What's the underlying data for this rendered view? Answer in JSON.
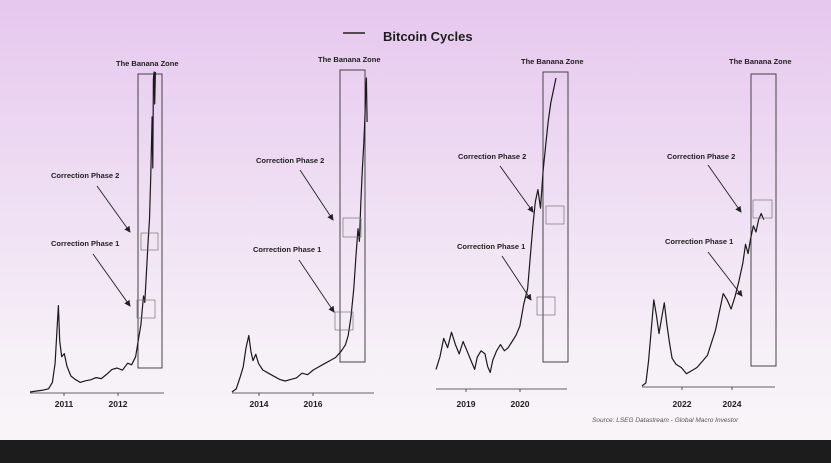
{
  "chart_data": {
    "type": "line",
    "title": "Bitcoin Cycles",
    "legend": "top-center",
    "source": "Source: LSEG Datastream - Global Macro Investor",
    "zone_label": "The Banana Zone",
    "annotation_labels": [
      "Correction Phase 2",
      "Correction Phase 1"
    ],
    "panels": [
      {
        "x_ticks": [
          "2011",
          "2012"
        ],
        "series": [
          {
            "x": 0.0,
            "y": 0.0
          },
          {
            "x": 0.05,
            "y": 0.003
          },
          {
            "x": 0.1,
            "y": 0.006
          },
          {
            "x": 0.14,
            "y": 0.01
          },
          {
            "x": 0.17,
            "y": 0.03
          },
          {
            "x": 0.19,
            "y": 0.09
          },
          {
            "x": 0.205,
            "y": 0.2
          },
          {
            "x": 0.215,
            "y": 0.27
          },
          {
            "x": 0.225,
            "y": 0.16
          },
          {
            "x": 0.24,
            "y": 0.11
          },
          {
            "x": 0.26,
            "y": 0.12
          },
          {
            "x": 0.28,
            "y": 0.08
          },
          {
            "x": 0.31,
            "y": 0.05
          },
          {
            "x": 0.34,
            "y": 0.04
          },
          {
            "x": 0.38,
            "y": 0.03
          },
          {
            "x": 0.42,
            "y": 0.035
          },
          {
            "x": 0.46,
            "y": 0.038
          },
          {
            "x": 0.5,
            "y": 0.045
          },
          {
            "x": 0.54,
            "y": 0.042
          },
          {
            "x": 0.58,
            "y": 0.055
          },
          {
            "x": 0.62,
            "y": 0.07
          },
          {
            "x": 0.66,
            "y": 0.075
          },
          {
            "x": 0.7,
            "y": 0.068
          },
          {
            "x": 0.74,
            "y": 0.09
          },
          {
            "x": 0.77,
            "y": 0.085
          },
          {
            "x": 0.8,
            "y": 0.11
          },
          {
            "x": 0.82,
            "y": 0.16
          },
          {
            "x": 0.84,
            "y": 0.21
          },
          {
            "x": 0.86,
            "y": 0.3
          },
          {
            "x": 0.87,
            "y": 0.28
          },
          {
            "x": 0.88,
            "y": 0.36
          },
          {
            "x": 0.895,
            "y": 0.47
          },
          {
            "x": 0.905,
            "y": 0.54
          },
          {
            "x": 0.915,
            "y": 0.68
          },
          {
            "x": 0.925,
            "y": 0.86
          },
          {
            "x": 0.93,
            "y": 0.7
          },
          {
            "x": 0.935,
            "y": 0.98
          },
          {
            "x": 0.94,
            "y": 1.0
          },
          {
            "x": 0.945,
            "y": 0.9
          },
          {
            "x": 0.95,
            "y": 1.0
          }
        ]
      },
      {
        "x_ticks": [
          "2014",
          "2016"
        ],
        "series": [
          {
            "x": 0.0,
            "y": 0.0
          },
          {
            "x": 0.03,
            "y": 0.01
          },
          {
            "x": 0.06,
            "y": 0.05
          },
          {
            "x": 0.08,
            "y": 0.08
          },
          {
            "x": 0.1,
            "y": 0.14
          },
          {
            "x": 0.12,
            "y": 0.18
          },
          {
            "x": 0.135,
            "y": 0.13
          },
          {
            "x": 0.15,
            "y": 0.1
          },
          {
            "x": 0.17,
            "y": 0.12
          },
          {
            "x": 0.19,
            "y": 0.09
          },
          {
            "x": 0.22,
            "y": 0.07
          },
          {
            "x": 0.26,
            "y": 0.06
          },
          {
            "x": 0.3,
            "y": 0.05
          },
          {
            "x": 0.34,
            "y": 0.04
          },
          {
            "x": 0.38,
            "y": 0.035
          },
          {
            "x": 0.42,
            "y": 0.04
          },
          {
            "x": 0.46,
            "y": 0.045
          },
          {
            "x": 0.5,
            "y": 0.06
          },
          {
            "x": 0.54,
            "y": 0.055
          },
          {
            "x": 0.58,
            "y": 0.07
          },
          {
            "x": 0.62,
            "y": 0.08
          },
          {
            "x": 0.66,
            "y": 0.09
          },
          {
            "x": 0.7,
            "y": 0.1
          },
          {
            "x": 0.74,
            "y": 0.11
          },
          {
            "x": 0.78,
            "y": 0.13
          },
          {
            "x": 0.81,
            "y": 0.15
          },
          {
            "x": 0.83,
            "y": 0.18
          },
          {
            "x": 0.85,
            "y": 0.24
          },
          {
            "x": 0.87,
            "y": 0.33
          },
          {
            "x": 0.885,
            "y": 0.43
          },
          {
            "x": 0.9,
            "y": 0.52
          },
          {
            "x": 0.91,
            "y": 0.48
          },
          {
            "x": 0.92,
            "y": 0.6
          },
          {
            "x": 0.93,
            "y": 0.7
          },
          {
            "x": 0.94,
            "y": 0.78
          },
          {
            "x": 0.95,
            "y": 0.88
          },
          {
            "x": 0.955,
            "y": 0.96
          },
          {
            "x": 0.96,
            "y": 1.0
          },
          {
            "x": 0.965,
            "y": 0.86
          }
        ]
      },
      {
        "x_ticks": [
          "2019",
          "2020"
        ],
        "series": [
          {
            "x": 0.0,
            "y": 0.06
          },
          {
            "x": 0.03,
            "y": 0.1
          },
          {
            "x": 0.06,
            "y": 0.16
          },
          {
            "x": 0.09,
            "y": 0.13
          },
          {
            "x": 0.12,
            "y": 0.18
          },
          {
            "x": 0.15,
            "y": 0.14
          },
          {
            "x": 0.18,
            "y": 0.11
          },
          {
            "x": 0.21,
            "y": 0.15
          },
          {
            "x": 0.24,
            "y": 0.12
          },
          {
            "x": 0.27,
            "y": 0.09
          },
          {
            "x": 0.3,
            "y": 0.06
          },
          {
            "x": 0.32,
            "y": 0.1
          },
          {
            "x": 0.35,
            "y": 0.12
          },
          {
            "x": 0.38,
            "y": 0.11
          },
          {
            "x": 0.4,
            "y": 0.07
          },
          {
            "x": 0.42,
            "y": 0.05
          },
          {
            "x": 0.44,
            "y": 0.09
          },
          {
            "x": 0.47,
            "y": 0.12
          },
          {
            "x": 0.5,
            "y": 0.14
          },
          {
            "x": 0.53,
            "y": 0.12
          },
          {
            "x": 0.56,
            "y": 0.13
          },
          {
            "x": 0.59,
            "y": 0.15
          },
          {
            "x": 0.62,
            "y": 0.17
          },
          {
            "x": 0.65,
            "y": 0.2
          },
          {
            "x": 0.68,
            "y": 0.27
          },
          {
            "x": 0.71,
            "y": 0.32
          },
          {
            "x": 0.73,
            "y": 0.42
          },
          {
            "x": 0.75,
            "y": 0.52
          },
          {
            "x": 0.77,
            "y": 0.6
          },
          {
            "x": 0.79,
            "y": 0.64
          },
          {
            "x": 0.81,
            "y": 0.58
          },
          {
            "x": 0.83,
            "y": 0.7
          },
          {
            "x": 0.85,
            "y": 0.78
          },
          {
            "x": 0.87,
            "y": 0.86
          },
          {
            "x": 0.89,
            "y": 0.92
          },
          {
            "x": 0.91,
            "y": 0.96
          },
          {
            "x": 0.93,
            "y": 1.0
          }
        ]
      },
      {
        "x_ticks": [
          "2022",
          "2024"
        ],
        "series": [
          {
            "x": 0.0,
            "y": 0.0
          },
          {
            "x": 0.03,
            "y": 0.01
          },
          {
            "x": 0.05,
            "y": 0.08
          },
          {
            "x": 0.07,
            "y": 0.18
          },
          {
            "x": 0.09,
            "y": 0.28
          },
          {
            "x": 0.11,
            "y": 0.23
          },
          {
            "x": 0.13,
            "y": 0.17
          },
          {
            "x": 0.15,
            "y": 0.22
          },
          {
            "x": 0.17,
            "y": 0.27
          },
          {
            "x": 0.19,
            "y": 0.2
          },
          {
            "x": 0.21,
            "y": 0.14
          },
          {
            "x": 0.23,
            "y": 0.09
          },
          {
            "x": 0.26,
            "y": 0.07
          },
          {
            "x": 0.3,
            "y": 0.06
          },
          {
            "x": 0.34,
            "y": 0.04
          },
          {
            "x": 0.38,
            "y": 0.05
          },
          {
            "x": 0.42,
            "y": 0.06
          },
          {
            "x": 0.46,
            "y": 0.08
          },
          {
            "x": 0.5,
            "y": 0.1
          },
          {
            "x": 0.53,
            "y": 0.14
          },
          {
            "x": 0.56,
            "y": 0.18
          },
          {
            "x": 0.59,
            "y": 0.24
          },
          {
            "x": 0.62,
            "y": 0.3
          },
          {
            "x": 0.65,
            "y": 0.28
          },
          {
            "x": 0.68,
            "y": 0.25
          },
          {
            "x": 0.71,
            "y": 0.29
          },
          {
            "x": 0.74,
            "y": 0.34
          },
          {
            "x": 0.77,
            "y": 0.4
          },
          {
            "x": 0.79,
            "y": 0.46
          },
          {
            "x": 0.81,
            "y": 0.43
          },
          {
            "x": 0.83,
            "y": 0.48
          },
          {
            "x": 0.85,
            "y": 0.52
          },
          {
            "x": 0.87,
            "y": 0.5
          },
          {
            "x": 0.89,
            "y": 0.54
          },
          {
            "x": 0.91,
            "y": 0.56
          },
          {
            "x": 0.93,
            "y": 0.54
          }
        ]
      }
    ]
  }
}
